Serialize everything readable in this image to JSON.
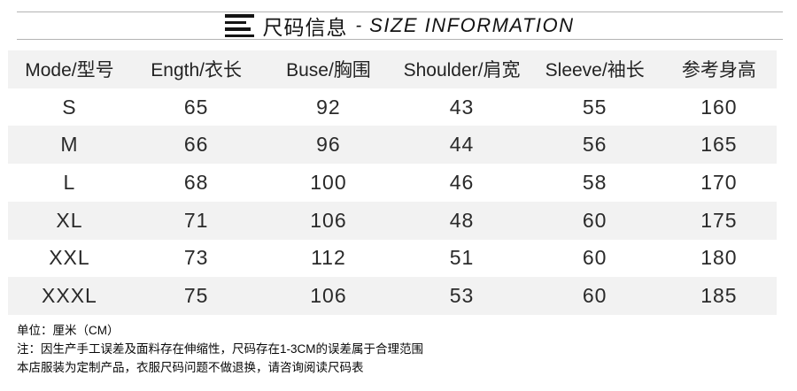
{
  "title": {
    "icon": "menu-lines-icon",
    "cn": "尺码信息",
    "separator": "-",
    "en": "SIZE INFORMATION"
  },
  "table": {
    "columns": [
      {
        "key": "model",
        "label": "Mode/型号"
      },
      {
        "key": "length",
        "label": "Ength/衣长"
      },
      {
        "key": "bust",
        "label": "Buse/胸围"
      },
      {
        "key": "shoulder",
        "label": "Shoulder/肩宽"
      },
      {
        "key": "sleeve",
        "label": "Sleeve/袖长"
      },
      {
        "key": "height",
        "label": "参考身高"
      }
    ],
    "rows": [
      {
        "size": "S",
        "cells": [
          "65",
          "92",
          "43",
          "55",
          "160"
        ]
      },
      {
        "size": "M",
        "cells": [
          "66",
          "96",
          "44",
          "56",
          "165"
        ]
      },
      {
        "size": "L",
        "cells": [
          "68",
          "100",
          "46",
          "58",
          "170"
        ]
      },
      {
        "size": "XL",
        "cells": [
          "71",
          "106",
          "48",
          "60",
          "175"
        ]
      },
      {
        "size": "XXL",
        "cells": [
          "73",
          "112",
          "51",
          "60",
          "180"
        ]
      },
      {
        "size": "XXXL",
        "cells": [
          "75",
          "106",
          "53",
          "60",
          "185"
        ]
      }
    ]
  },
  "notes": {
    "unit": "单位：厘米（CM）",
    "tolerance": "注：因生产手工误差及面料存在伸缩性，尺码存在1-3CM的误差属于合理范围",
    "policy": "本店服装为定制产品，衣服尺码问题不做退换，请咨询阅读尺码表"
  },
  "colors": {
    "row_alt": "#f2f2f2",
    "rule": "#b3b3b3",
    "text": "#2a2a2a"
  }
}
